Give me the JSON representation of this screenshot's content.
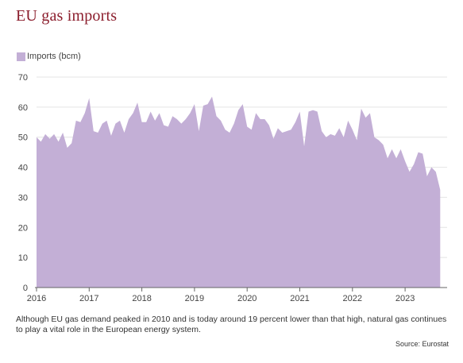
{
  "title": "EU gas imports",
  "caption": "Although EU gas demand peaked in 2010 and is today around 19 percent lower than that high, natural gas continues to play a vital role in the European energy system.",
  "source": "Source: Eurostat",
  "colors": {
    "area": "#c3afd6",
    "title": "#8b1d2c",
    "grid": "#e4e4e4"
  },
  "chart_data": {
    "type": "area",
    "title": "EU gas imports",
    "xlabel": "",
    "ylabel": "",
    "legend": "top-left",
    "grid": true,
    "ylim": [
      0,
      70
    ],
    "yticks": [
      0,
      10,
      20,
      30,
      40,
      50,
      60,
      70
    ],
    "xticks": [
      "2016",
      "2017",
      "2018",
      "2019",
      "2020",
      "2021",
      "2022",
      "2023"
    ],
    "x_start": "2016-01",
    "series": [
      {
        "name": "Imports (bcm)",
        "values": [
          50,
          48.5,
          51,
          49.5,
          51,
          48.5,
          51.5,
          46.5,
          48,
          55.5,
          55,
          58,
          63,
          52,
          51.5,
          54.5,
          55.5,
          50.5,
          54.5,
          55.5,
          51.5,
          56,
          58,
          61.5,
          55,
          55,
          58.5,
          55.5,
          58,
          54,
          53.5,
          57,
          56,
          54.5,
          56,
          58,
          61,
          52,
          60.5,
          61,
          63.5,
          57,
          55.5,
          52.5,
          51.5,
          54.5,
          59,
          61,
          53.5,
          52.5,
          58,
          56,
          56,
          54,
          49.5,
          53,
          51.5,
          52,
          52.5,
          55,
          58.5,
          47,
          58.5,
          59,
          58.5,
          52,
          50,
          51,
          50.5,
          53,
          50,
          55.5,
          52.5,
          49,
          59.5,
          56.5,
          58,
          50,
          49,
          47.5,
          43,
          46,
          43,
          46,
          42,
          38.5,
          41,
          45,
          44.5,
          37,
          40,
          38.5,
          32.5
        ]
      }
    ]
  }
}
